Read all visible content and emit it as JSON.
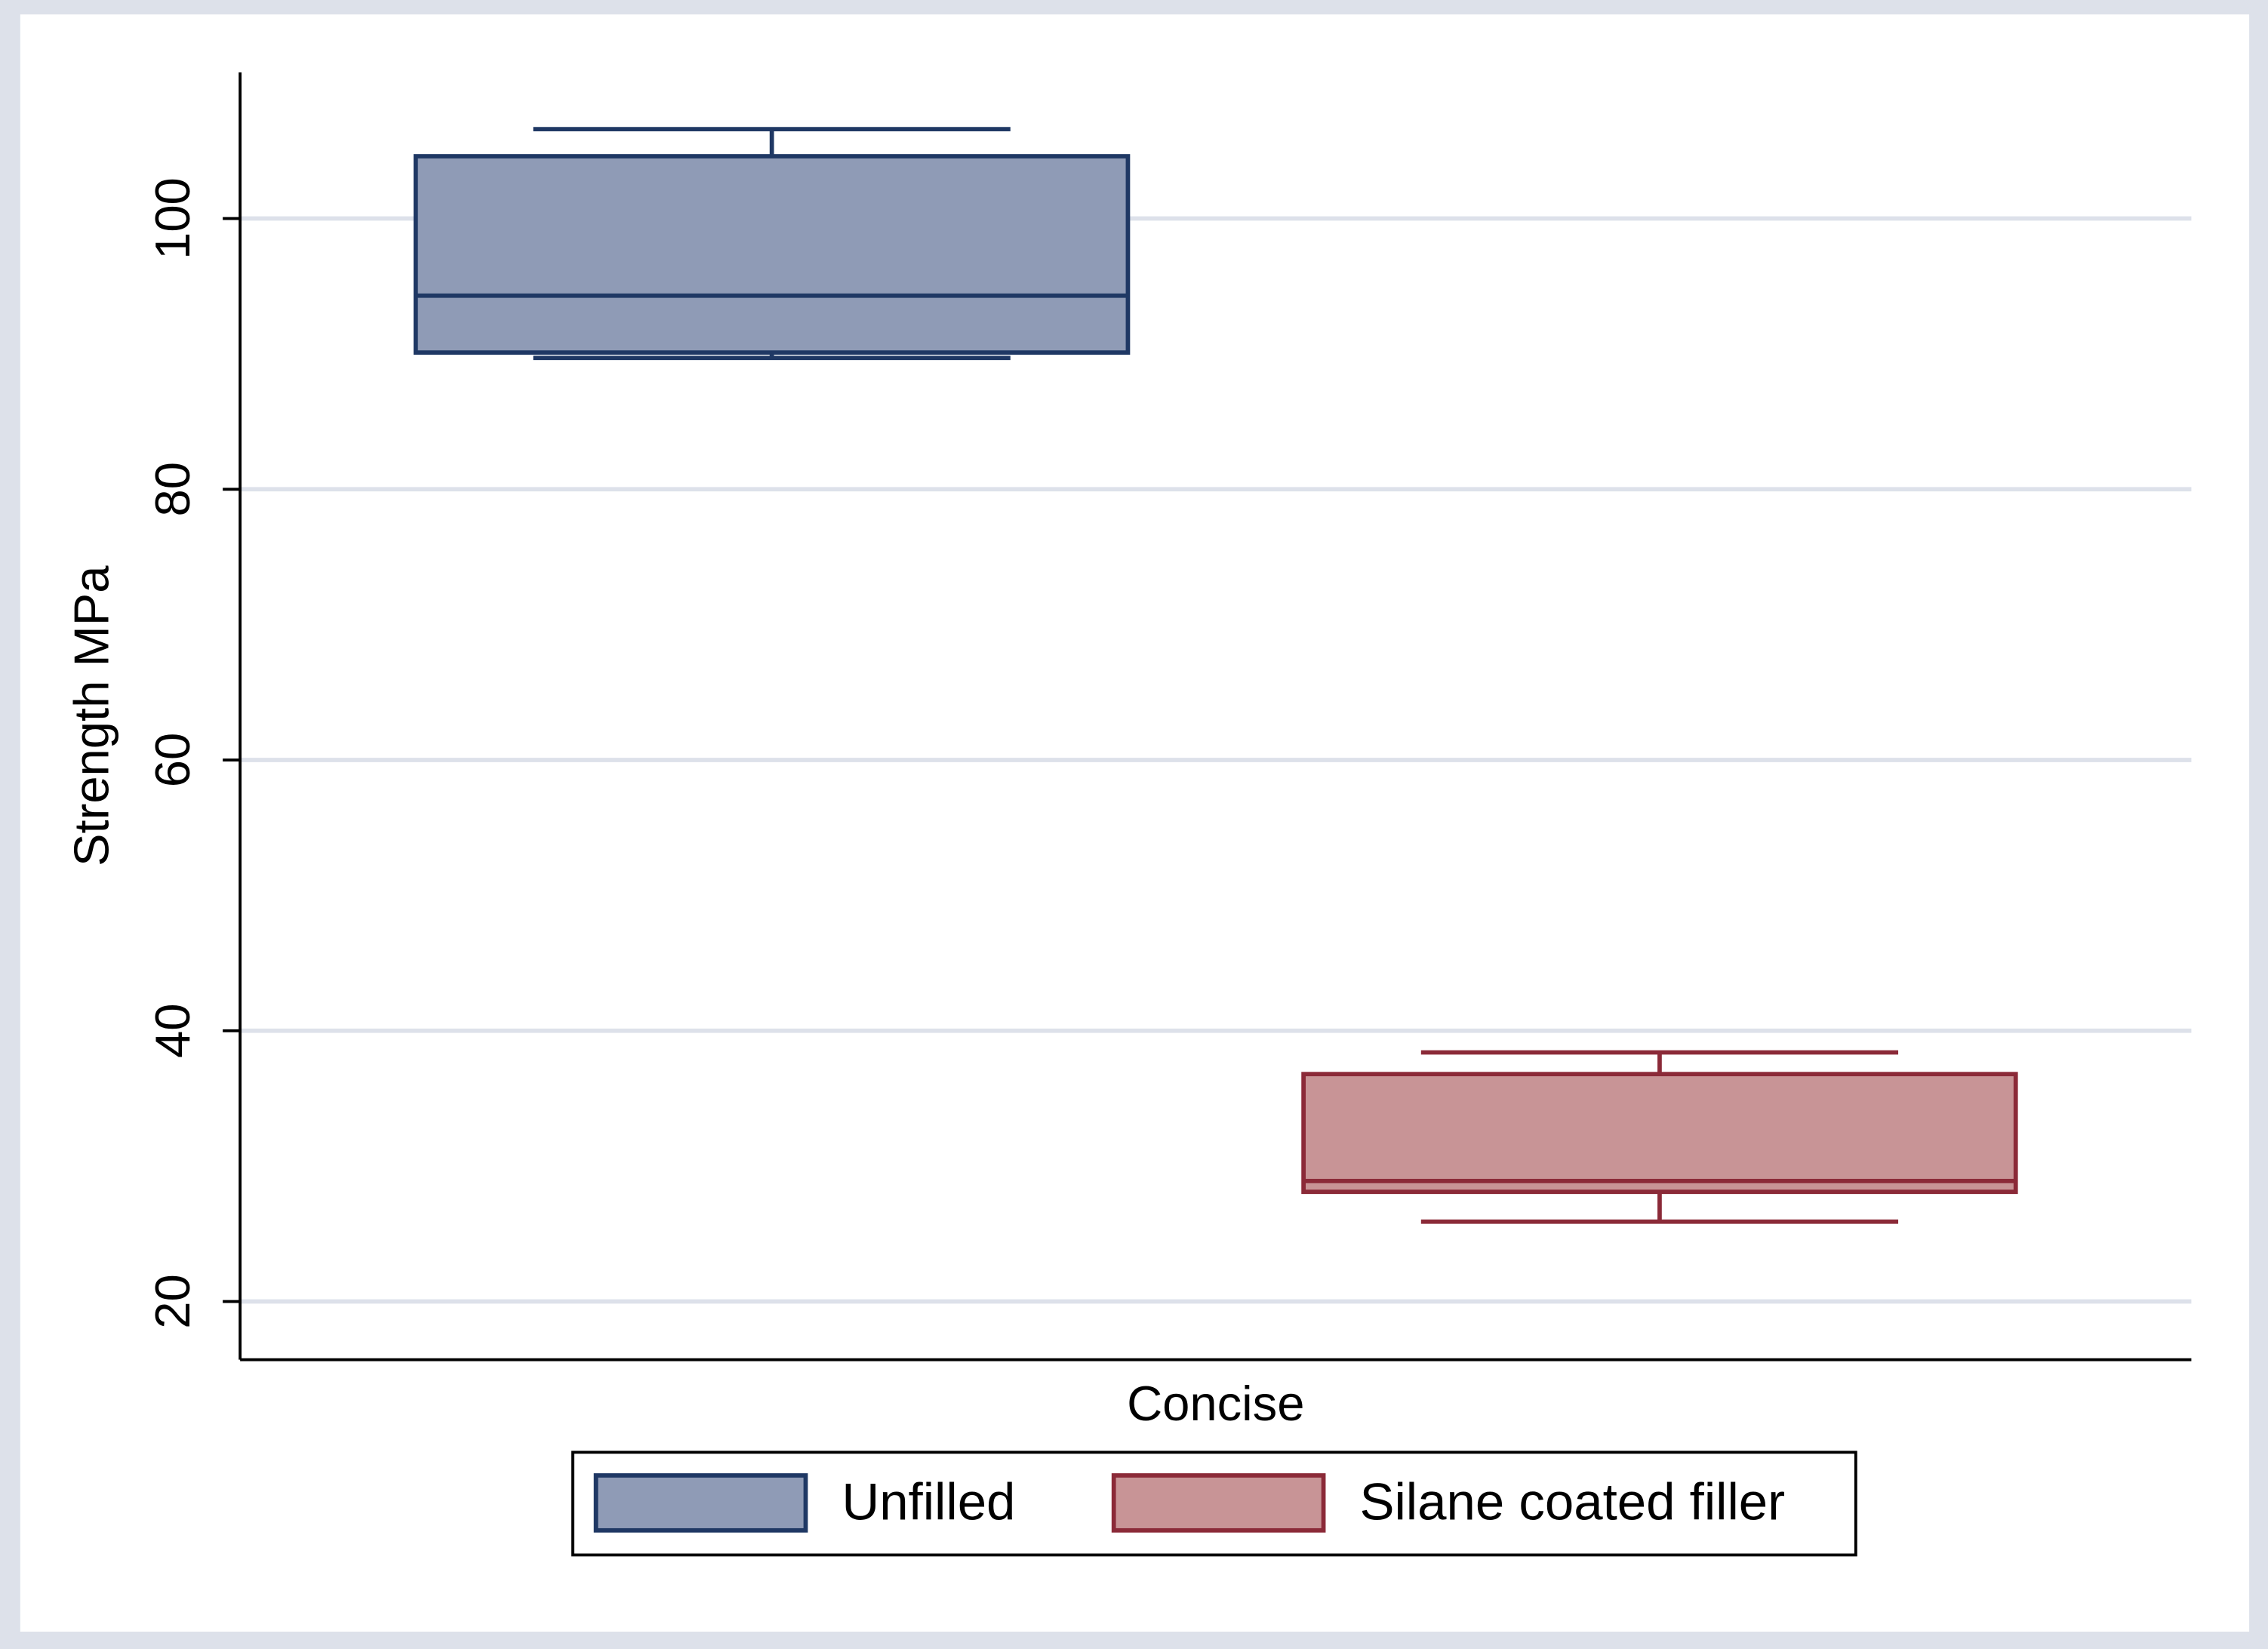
{
  "chart_data": {
    "type": "box",
    "y_label": "Strength MPa",
    "categories": [
      "Concise"
    ],
    "series": [
      {
        "name": "Unfilled",
        "color": "#8f9bb6",
        "edge": "#1f3864",
        "min": 89.7,
        "q1": 90.1,
        "median": 94.3,
        "q3": 104.6,
        "max": 106.6
      },
      {
        "name": "Silane coated filler",
        "color": "#c89496",
        "edge": "#8b2a38",
        "min": 25.9,
        "q1": 28.1,
        "median": 28.9,
        "q3": 36.8,
        "max": 38.4
      }
    ],
    "ylim": [
      15.7,
      110.8
    ],
    "yticks": [
      20,
      40,
      60,
      80,
      100
    ],
    "grid": true
  }
}
